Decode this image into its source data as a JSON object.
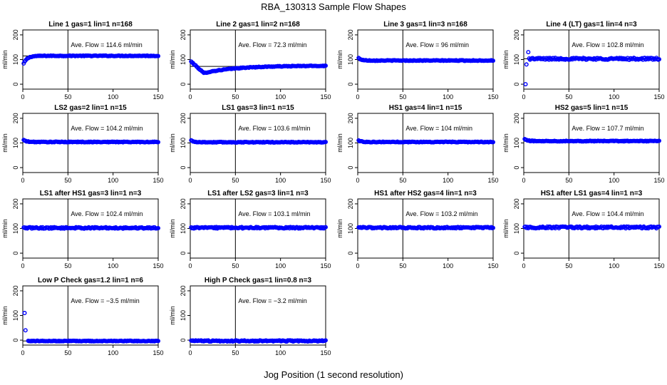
{
  "figure": {
    "title": "RBA_130313  Sample Flow Shapes",
    "xlabel": "Jog Position (1 second resolution)"
  },
  "colors": {
    "points": "#0000ff",
    "axes": "#000000"
  },
  "chart_data": [
    {
      "type": "scatter",
      "title": "Line 1 gas=1 lin=1 n=168",
      "ylabel": "ml/min",
      "annotation": "Ave. Flow = 114.6  ml/min",
      "mean": 114.6,
      "vline": 50,
      "xlim": [
        0,
        150
      ],
      "ylim": [
        -20,
        220
      ],
      "xticks": [
        0,
        50,
        100,
        150
      ],
      "yticks": [
        0,
        100,
        200
      ],
      "series": [
        {
          "shape": "rise",
          "x": [
            0,
            150
          ],
          "start": 75,
          "level": 115,
          "noise": 1.5
        }
      ]
    },
    {
      "type": "scatter",
      "title": "Line 2 gas=1 lin=2 n=168",
      "ylabel": "ml/min",
      "annotation": "Ave. Flow = 72.3  ml/min",
      "mean": 72.3,
      "vline": 50,
      "xlim": [
        0,
        150
      ],
      "ylim": [
        -20,
        220
      ],
      "xticks": [
        0,
        50,
        100,
        150
      ],
      "yticks": [
        0,
        100,
        200
      ],
      "series": [
        {
          "shape": "dip",
          "x": [
            0,
            150
          ],
          "start": 95,
          "min": 45,
          "level": 75,
          "noise": 1.5
        }
      ]
    },
    {
      "type": "scatter",
      "title": "Line 3 gas=1 lin=3 n=168",
      "ylabel": "ml/min",
      "annotation": "Ave. Flow = 96  ml/min",
      "mean": 96,
      "vline": 50,
      "xlim": [
        0,
        150
      ],
      "ylim": [
        -20,
        220
      ],
      "xticks": [
        0,
        50,
        100,
        150
      ],
      "yticks": [
        0,
        100,
        200
      ],
      "series": [
        {
          "shape": "fall",
          "x": [
            0,
            150
          ],
          "start": 110,
          "level": 96,
          "noise": 1.5
        }
      ]
    },
    {
      "type": "scatter",
      "title": "Line 4 (LT) gas=1 lin=4 n=3",
      "ylabel": "ml/min",
      "annotation": "Ave. Flow = 102.8  ml/min",
      "mean": 102.8,
      "vline": 50,
      "xlim": [
        0,
        150
      ],
      "ylim": [
        -20,
        220
      ],
      "xticks": [
        0,
        50,
        100,
        150
      ],
      "yticks": [
        0,
        100,
        200
      ],
      "series": [
        {
          "shape": "spike",
          "x": [
            0,
            150
          ],
          "outliers": [
            [
              2,
              0
            ],
            [
              3,
              80
            ],
            [
              5,
              130
            ]
          ],
          "level": 103,
          "noise": 4
        }
      ]
    },
    {
      "type": "scatter",
      "title": "LS2 gas=2 lin=1 n=15",
      "ylabel": "ml/min",
      "annotation": "Ave. Flow = 104.2  ml/min",
      "mean": 104.2,
      "vline": 50,
      "xlim": [
        0,
        150
      ],
      "ylim": [
        -20,
        220
      ],
      "xticks": [
        0,
        50,
        100,
        150
      ],
      "yticks": [
        0,
        100,
        200
      ],
      "series": [
        {
          "shape": "fall",
          "x": [
            0,
            150
          ],
          "start": 115,
          "level": 104,
          "noise": 1.5
        }
      ]
    },
    {
      "type": "scatter",
      "title": "LS1 gas=3 lin=1 n=15",
      "ylabel": "ml/min",
      "annotation": "Ave. Flow = 103.6  ml/min",
      "mean": 103.6,
      "vline": 50,
      "xlim": [
        0,
        150
      ],
      "ylim": [
        -20,
        220
      ],
      "xticks": [
        0,
        50,
        100,
        150
      ],
      "yticks": [
        0,
        100,
        200
      ],
      "series": [
        {
          "shape": "fall",
          "x": [
            0,
            150
          ],
          "start": 113,
          "level": 103,
          "noise": 1.5
        }
      ]
    },
    {
      "type": "scatter",
      "title": "HS1 gas=4 lin=1 n=15",
      "ylabel": "ml/min",
      "annotation": "Ave. Flow = 104  ml/min",
      "mean": 104,
      "vline": 50,
      "xlim": [
        0,
        150
      ],
      "ylim": [
        -20,
        220
      ],
      "xticks": [
        0,
        50,
        100,
        150
      ],
      "yticks": [
        0,
        100,
        200
      ],
      "series": [
        {
          "shape": "fall",
          "x": [
            0,
            150
          ],
          "start": 112,
          "level": 104,
          "noise": 1.5
        }
      ]
    },
    {
      "type": "scatter",
      "title": "HS2 gas=5 lin=1 n=15",
      "ylabel": "ml/min",
      "annotation": "Ave. Flow = 107.7  ml/min",
      "mean": 107.7,
      "vline": 50,
      "xlim": [
        0,
        150
      ],
      "ylim": [
        -20,
        220
      ],
      "xticks": [
        0,
        50,
        100,
        150
      ],
      "yticks": [
        0,
        100,
        200
      ],
      "series": [
        {
          "shape": "fall",
          "x": [
            0,
            150
          ],
          "start": 118,
          "level": 107.7,
          "noise": 1.5
        }
      ]
    },
    {
      "type": "scatter",
      "title": "LS1 after HS1 gas=3 lin=1 n=3",
      "ylabel": "ml/min",
      "annotation": "Ave. Flow = 102.4  ml/min",
      "mean": 102.4,
      "vline": 50,
      "xlim": [
        0,
        150
      ],
      "ylim": [
        -20,
        220
      ],
      "xticks": [
        0,
        50,
        100,
        150
      ],
      "yticks": [
        0,
        100,
        200
      ],
      "series": [
        {
          "shape": "flat",
          "x": [
            0,
            150
          ],
          "level": 102.4,
          "noise": 3
        }
      ]
    },
    {
      "type": "scatter",
      "title": "LS1 after LS2 gas=3 lin=1 n=3",
      "ylabel": "ml/min",
      "annotation": "Ave. Flow = 103.1  ml/min",
      "mean": 103.1,
      "vline": 50,
      "xlim": [
        0,
        150
      ],
      "ylim": [
        -20,
        220
      ],
      "xticks": [
        0,
        50,
        100,
        150
      ],
      "yticks": [
        0,
        100,
        200
      ],
      "series": [
        {
          "shape": "flat",
          "x": [
            0,
            150
          ],
          "level": 103.1,
          "noise": 3
        }
      ]
    },
    {
      "type": "scatter",
      "title": "HS1 after HS2 gas=4 lin=1 n=3",
      "ylabel": "ml/min",
      "annotation": "Ave. Flow = 103.2  ml/min",
      "mean": 103.2,
      "vline": 50,
      "xlim": [
        0,
        150
      ],
      "ylim": [
        -20,
        220
      ],
      "xticks": [
        0,
        50,
        100,
        150
      ],
      "yticks": [
        0,
        100,
        200
      ],
      "series": [
        {
          "shape": "flat",
          "x": [
            0,
            150
          ],
          "level": 103.2,
          "noise": 3
        }
      ]
    },
    {
      "type": "scatter",
      "title": "HS1 after LS1 gas=4 lin=1 n=3",
      "ylabel": "ml/min",
      "annotation": "Ave. Flow = 104.4  ml/min",
      "mean": 104.4,
      "vline": 50,
      "xlim": [
        0,
        150
      ],
      "ylim": [
        -20,
        220
      ],
      "xticks": [
        0,
        50,
        100,
        150
      ],
      "yticks": [
        0,
        100,
        200
      ],
      "series": [
        {
          "shape": "flat",
          "x": [
            0,
            150
          ],
          "level": 104.4,
          "noise": 4
        }
      ]
    },
    {
      "type": "scatter",
      "title": "Low P Check gas=1.2 lin=1 n=6",
      "ylabel": "ml/min",
      "annotation": "Ave. Flow = −3.5  ml/min",
      "mean": -3.5,
      "vline": 50,
      "xlim": [
        0,
        150
      ],
      "ylim": [
        -20,
        220
      ],
      "xticks": [
        0,
        50,
        100,
        150
      ],
      "yticks": [
        0,
        100,
        200
      ],
      "series": [
        {
          "shape": "spike",
          "x": [
            0,
            150
          ],
          "outliers": [
            [
              2,
              110
            ],
            [
              3,
              40
            ]
          ],
          "level": -3.5,
          "noise": 1.5
        }
      ]
    },
    {
      "type": "scatter",
      "title": "High P Check gas=1 lin=0.8 n=3",
      "ylabel": "ml/min",
      "annotation": "Ave. Flow = −3.2  ml/min",
      "mean": -3.2,
      "vline": 50,
      "xlim": [
        0,
        150
      ],
      "ylim": [
        -20,
        220
      ],
      "xticks": [
        0,
        50,
        100,
        150
      ],
      "yticks": [
        0,
        100,
        200
      ],
      "series": [
        {
          "shape": "flat",
          "x": [
            0,
            150
          ],
          "level": -3.2,
          "noise": 2.5
        }
      ]
    }
  ]
}
